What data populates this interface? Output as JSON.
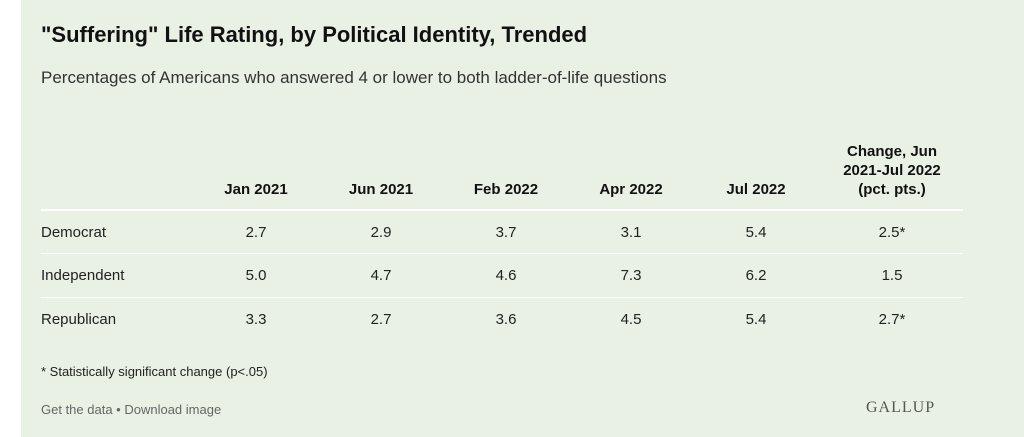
{
  "chart_data": {
    "type": "table",
    "title": "\"Suffering\" Life Rating, by Political Identity, Trended",
    "subtitle": "Percentages of Americans who answered 4 or lower to both ladder-of-life questions",
    "columns": [
      "",
      "Jan 2021",
      "Jun 2021",
      "Feb 2022",
      "Apr 2022",
      "Jul 2022",
      "Change, Jun 2021-Jul 2022 (pct. pts.)"
    ],
    "change_header_lines": [
      "Change, Jun",
      "2021-Jul 2022",
      "(pct. pts.)"
    ],
    "rows": [
      {
        "label": "Democrat",
        "values": [
          "2.7",
          "2.9",
          "3.7",
          "3.1",
          "5.4",
          "2.5*"
        ]
      },
      {
        "label": "Independent",
        "values": [
          "5.0",
          "4.7",
          "4.6",
          "7.3",
          "6.2",
          "1.5"
        ]
      },
      {
        "label": "Republican",
        "values": [
          "3.3",
          "2.7",
          "3.6",
          "4.5",
          "5.4",
          "2.7*"
        ]
      }
    ],
    "footnote": "* Statistically significant change (p<.05)"
  },
  "links": {
    "get_data": "Get the data",
    "separator": " • ",
    "download": "Download image"
  },
  "logo": "GALLUP",
  "colors": {
    "background": "#e8f1e3",
    "rule": "#ffffff"
  }
}
